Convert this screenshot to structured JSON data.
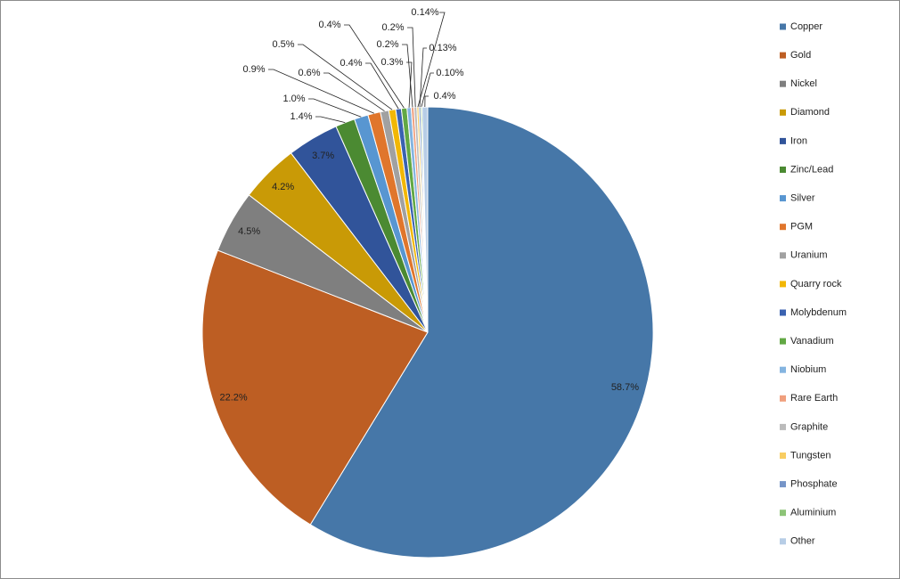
{
  "chart_data": {
    "type": "pie",
    "categories": [
      "Copper",
      "Gold",
      "Nickel",
      "Diamond",
      "Iron",
      "Zinc/Lead",
      "Silver",
      "PGM",
      "Uranium",
      "Quarry rock",
      "Molybdenum",
      "Vanadium",
      "Niobium",
      "Rare Earth",
      "Graphite",
      "Tungsten",
      "Phosphate",
      "Aluminium",
      "Other"
    ],
    "values": [
      58.7,
      22.2,
      4.5,
      4.2,
      3.7,
      1.4,
      1.0,
      0.9,
      0.6,
      0.5,
      0.4,
      0.4,
      0.3,
      0.2,
      0.2,
      0.14,
      0.13,
      0.1,
      0.4
    ],
    "value_labels": [
      "58.7%",
      "22.2%",
      "4.5%",
      "4.2%",
      "3.7%",
      "1.4%",
      "1.0%",
      "0.9%",
      "0.6%",
      "0.5%",
      "0.4%",
      "0.4%",
      "0.3%",
      "0.2%",
      "0.2%",
      "0.14%",
      "0.13%",
      "0.10%",
      "0.4%"
    ],
    "colors": [
      "#4677a8",
      "#bd5e23",
      "#7f7f7f",
      "#c99a06",
      "#31549a",
      "#4b8a32",
      "#5896d1",
      "#e0762c",
      "#a1a1a1",
      "#f2b705",
      "#3a62b0",
      "#62a844",
      "#84b4e0",
      "#f09f7d",
      "#bbbbbb",
      "#f8cd62",
      "#7695c8",
      "#8dc477",
      "#b7cde6"
    ],
    "legend": "right"
  }
}
